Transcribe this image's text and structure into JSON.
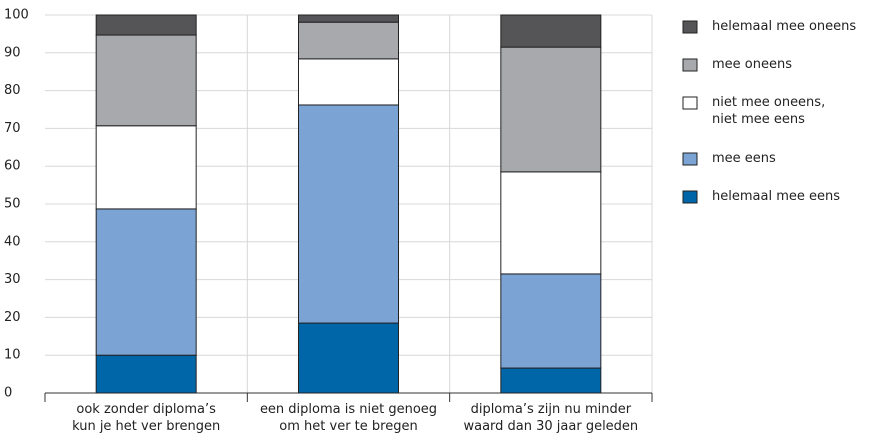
{
  "chart_data": {
    "type": "stacked_bar",
    "categories": [
      "ook zonder diploma’s\nkun je het ver brengen",
      "een diploma is niet genoeg\nom het ver te bregen",
      "diploma’s zijn nu minder\nwaard dan 30  jaar geleden"
    ],
    "series": [
      {
        "name": "helemaal mee eens",
        "color": "#0066a8",
        "values": [
          10,
          18.5,
          6.6
        ]
      },
      {
        "name": "mee eens",
        "color": "#7ba3d4",
        "values": [
          38.7,
          57.7,
          24.9
        ]
      },
      {
        "name": "niet mee oneens,\nniet mee eens",
        "color": "#ffffff",
        "values": [
          22,
          12.2,
          27
        ]
      },
      {
        "name": "mee oneens",
        "color": "#a8a9ad",
        "values": [
          24,
          9.7,
          33
        ]
      },
      {
        "name": "helemaal mee oneens",
        "color": "#555557",
        "values": [
          5.3,
          1.9,
          8.5
        ]
      }
    ],
    "ylim": [
      0,
      100
    ],
    "yticks": [
      0,
      10,
      20,
      30,
      40,
      50,
      60,
      70,
      80,
      90,
      100
    ],
    "grid": true,
    "legend": "right"
  }
}
